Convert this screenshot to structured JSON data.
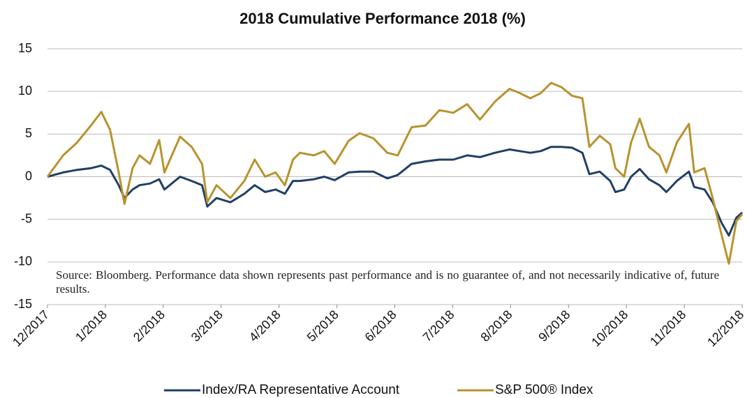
{
  "chart_data": {
    "type": "line",
    "title": "2018 Cumulative Performance 2018 (%)",
    "annotation": "Source: Bloomberg. Performance data shown represents past performance and is no guarantee of, and not necessarily indicative of, future results.",
    "x": [
      0,
      0.27,
      0.51,
      0.75,
      0.93,
      1.08,
      1.23,
      1.33,
      1.47,
      1.59,
      1.77,
      1.93,
      2.02,
      2.29,
      2.49,
      2.67,
      2.76,
      2.92,
      3.16,
      3.4,
      3.58,
      3.76,
      3.94,
      4.1,
      4.24,
      4.36,
      4.6,
      4.78,
      4.96,
      5.2,
      5.39,
      5.63,
      5.87,
      6.05,
      6.29,
      6.53,
      6.77,
      7.01,
      7.25,
      7.47,
      7.73,
      7.98,
      8.16,
      8.34,
      8.52,
      8.7,
      8.88,
      9.06,
      9.24,
      9.36,
      9.54,
      9.72,
      9.81,
      9.96,
      10.08,
      10.23,
      10.39,
      10.57,
      10.69,
      10.87,
      11.08,
      11.17,
      11.35,
      11.49,
      11.65,
      11.77,
      11.9,
      12.0
    ],
    "series": [
      {
        "name": "Index/RA Representative Account",
        "color": "#1f3f66",
        "values": [
          0,
          0.5,
          0.8,
          1.0,
          1.3,
          0.8,
          -1.0,
          -2.5,
          -1.5,
          -1.0,
          -0.8,
          -0.3,
          -1.5,
          0,
          -0.5,
          -1.0,
          -3.5,
          -2.5,
          -3.0,
          -2.0,
          -1.0,
          -1.8,
          -1.5,
          -2.0,
          -0.5,
          -0.5,
          -0.3,
          0,
          -0.4,
          0.5,
          0.6,
          0.6,
          -0.2,
          0.2,
          1.5,
          1.8,
          2.0,
          2.0,
          2.5,
          2.3,
          2.8,
          3.2,
          3.0,
          2.8,
          3.0,
          3.5,
          3.5,
          3.4,
          2.8,
          0.3,
          0.6,
          -0.5,
          -1.8,
          -1.5,
          0,
          0.9,
          -0.3,
          -1.0,
          -1.8,
          -0.5,
          0.6,
          -1.2,
          -1.5,
          -3.0,
          -5.5,
          -6.9,
          -4.8,
          -4.2
        ]
      },
      {
        "name": "S&P 500® Index",
        "color": "#b8922e",
        "values": [
          0,
          2.5,
          4,
          6,
          7.6,
          5.5,
          0.5,
          -3.2,
          1.0,
          2.5,
          1.5,
          4.3,
          0.5,
          4.7,
          3.5,
          1.5,
          -3.0,
          -1,
          -2.5,
          -0.5,
          2,
          0,
          0.5,
          -1,
          2,
          2.8,
          2.5,
          3,
          1.5,
          4.2,
          5.1,
          4.5,
          2.8,
          2.5,
          5.8,
          6.0,
          7.8,
          7.5,
          8.5,
          6.7,
          8.8,
          10.3,
          9.8,
          9.2,
          9.8,
          11.0,
          10.5,
          9.5,
          9.2,
          3.5,
          4.8,
          3.8,
          1.0,
          0,
          4.0,
          6.8,
          3.5,
          2.5,
          0.5,
          4.0,
          6.2,
          0.5,
          1.0,
          -2.5,
          -7,
          -10.2,
          -5.2,
          -4.4
        ]
      }
    ],
    "xlim": [
      0,
      12
    ],
    "xticks": [
      {
        "value": 0,
        "label": "12/2017"
      },
      {
        "value": 1,
        "label": "1/2018"
      },
      {
        "value": 2,
        "label": "2/2018"
      },
      {
        "value": 3,
        "label": "3/2018"
      },
      {
        "value": 4,
        "label": "4/2018"
      },
      {
        "value": 5,
        "label": "5/2018"
      },
      {
        "value": 6,
        "label": "6/2018"
      },
      {
        "value": 7,
        "label": "7/2018"
      },
      {
        "value": 8,
        "label": "8/2018"
      },
      {
        "value": 9,
        "label": "9/2018"
      },
      {
        "value": 10,
        "label": "10/2018"
      },
      {
        "value": 11,
        "label": "11/2018"
      },
      {
        "value": 12,
        "label": "12/2018"
      }
    ],
    "ylim": [
      -15,
      15
    ],
    "yticks": [
      -15,
      -10,
      -5,
      0,
      5,
      10,
      15
    ],
    "grid": true,
    "legend": "bottom"
  }
}
